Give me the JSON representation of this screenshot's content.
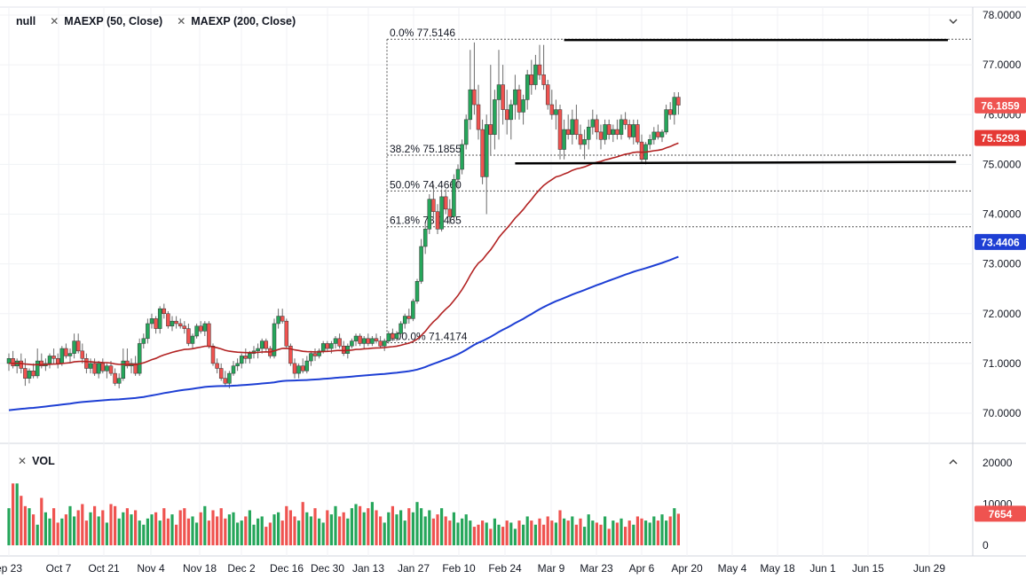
{
  "legend": {
    "symbol": "null",
    "ma50": "MAEXP (50, Close)",
    "ma200": "MAEXP (200, Close)",
    "vol": "VOL"
  },
  "icons": {
    "remove": "close-icon",
    "collapse_main": "chevron-down-icon",
    "collapse_vol": "chevron-up-icon"
  },
  "colors": {
    "up": "#26a65b",
    "down": "#ef5350",
    "ma50": "#b22222",
    "ma200": "#1e3fd4",
    "price_label": "#ef5350",
    "ma50_label": "#e53935",
    "ma200_label": "#1e3fd4",
    "vol_label": "#ef5350"
  },
  "chart_data": {
    "type": "candlestick",
    "price_axis": {
      "ticks": [
        "78.0000",
        "77.0000",
        "76.0000",
        "75.0000",
        "74.0000",
        "73.0000",
        "72.0000",
        "71.0000",
        "70.0000"
      ],
      "range": [
        69.75,
        78.05
      ]
    },
    "volume_axis": {
      "ticks": [
        "20000",
        "10000",
        "0"
      ],
      "range": [
        0,
        21500
      ]
    },
    "x_axis": {
      "ticks": [
        "ep 23",
        "Oct 7",
        "Oct 21",
        "Nov 4",
        "Nov 18",
        "Dec 2",
        "Dec 16",
        "Dec 30",
        "Jan 13",
        "Jan 27",
        "Feb 10",
        "Feb 24",
        "Mar 9",
        "Mar 23",
        "Apr 6",
        "Apr 20",
        "May 4",
        "May 18",
        "Jun 1",
        "Jun 15",
        "Jun 29"
      ]
    },
    "last_price_label": "76.1859",
    "ma50_label": "75.5293",
    "ma200_label": "73.4406",
    "volume_label": "7654",
    "fibonacci": {
      "from_date_index": 93,
      "levels": [
        {
          "label": "0.0% 77.5146",
          "value": 77.5146
        },
        {
          "label": "38.2% 75.1855",
          "value": 75.1855
        },
        {
          "label": "50.0% 74.4660",
          "value": 74.466
        },
        {
          "label": "61.8% 73.7465",
          "value": 73.7465
        },
        {
          "label": "100.0% 71.4174",
          "value": 71.4174
        }
      ]
    },
    "trendlines": [
      {
        "name": "resistance",
        "from": [
          136,
          77.5
        ],
        "to": [
          230,
          77.5
        ]
      },
      {
        "name": "support",
        "from": [
          124,
          75.02
        ],
        "to": [
          232,
          75.05
        ]
      }
    ],
    "candles": [
      [
        71.0,
        71.2,
        70.85,
        71.1,
        9000,
        1
      ],
      [
        71.1,
        71.25,
        70.9,
        70.95,
        15000,
        0
      ],
      [
        70.95,
        71.1,
        70.8,
        71.05,
        15000,
        1
      ],
      [
        71.05,
        71.2,
        70.8,
        70.9,
        12000,
        0
      ],
      [
        70.9,
        71.1,
        70.55,
        70.7,
        9500,
        0
      ],
      [
        70.7,
        70.9,
        70.6,
        70.85,
        9000,
        1
      ],
      [
        70.85,
        71.0,
        70.7,
        70.75,
        7500,
        0
      ],
      [
        70.75,
        71.3,
        70.7,
        71.05,
        5000,
        1
      ],
      [
        71.05,
        71.2,
        70.9,
        70.95,
        11500,
        0
      ],
      [
        70.95,
        71.1,
        70.85,
        71.0,
        8000,
        1
      ],
      [
        71.0,
        71.2,
        70.9,
        71.15,
        6500,
        1
      ],
      [
        71.15,
        71.3,
        71.0,
        71.1,
        9000,
        0
      ],
      [
        71.1,
        71.2,
        70.9,
        71.0,
        5500,
        0
      ],
      [
        71.0,
        71.35,
        70.95,
        71.3,
        6500,
        1
      ],
      [
        71.3,
        71.4,
        71.1,
        71.15,
        7500,
        0
      ],
      [
        71.15,
        71.3,
        71.0,
        71.2,
        9500,
        1
      ],
      [
        71.2,
        71.6,
        71.1,
        71.45,
        7000,
        1
      ],
      [
        71.45,
        71.6,
        71.2,
        71.25,
        8500,
        0
      ],
      [
        71.25,
        71.4,
        71.0,
        71.1,
        10000,
        0
      ],
      [
        71.1,
        71.2,
        70.8,
        70.9,
        6000,
        0
      ],
      [
        70.9,
        71.1,
        70.8,
        71.0,
        8000,
        1
      ],
      [
        71.0,
        71.1,
        70.75,
        70.8,
        9500,
        0
      ],
      [
        70.8,
        71.05,
        70.7,
        71.0,
        7000,
        1
      ],
      [
        71.0,
        71.1,
        70.8,
        70.85,
        8500,
        0
      ],
      [
        70.85,
        71.0,
        70.7,
        70.95,
        5500,
        1
      ],
      [
        70.95,
        71.05,
        70.75,
        70.8,
        10000,
        0
      ],
      [
        70.8,
        70.9,
        70.55,
        70.6,
        9500,
        0
      ],
      [
        70.6,
        70.8,
        70.5,
        70.7,
        6500,
        1
      ],
      [
        70.7,
        71.3,
        70.65,
        71.05,
        8000,
        1
      ],
      [
        71.05,
        71.3,
        70.9,
        70.95,
        9000,
        0
      ],
      [
        70.95,
        71.1,
        70.8,
        71.0,
        7500,
        1
      ],
      [
        71.0,
        71.15,
        70.75,
        70.8,
        8500,
        0
      ],
      [
        70.8,
        71.5,
        70.75,
        71.4,
        6000,
        1
      ],
      [
        71.4,
        71.6,
        71.3,
        71.5,
        5000,
        1
      ],
      [
        71.5,
        71.9,
        71.4,
        71.8,
        6500,
        1
      ],
      [
        71.8,
        72.0,
        71.7,
        71.9,
        7500,
        1
      ],
      [
        71.9,
        71.95,
        71.6,
        71.7,
        8000,
        0
      ],
      [
        71.7,
        72.15,
        71.6,
        72.1,
        6000,
        1
      ],
      [
        72.1,
        72.2,
        71.9,
        72.0,
        9000,
        0
      ],
      [
        72.0,
        72.05,
        71.7,
        71.75,
        6500,
        0
      ],
      [
        71.75,
        71.95,
        71.65,
        71.85,
        7500,
        1
      ],
      [
        71.85,
        71.95,
        71.7,
        71.8,
        5000,
        0
      ],
      [
        71.8,
        71.9,
        71.7,
        71.75,
        8500,
        0
      ],
      [
        71.75,
        71.85,
        71.6,
        71.7,
        9000,
        0
      ],
      [
        71.7,
        71.8,
        71.35,
        71.4,
        6500,
        0
      ],
      [
        71.4,
        71.6,
        71.3,
        71.55,
        7000,
        1
      ],
      [
        71.55,
        71.8,
        71.5,
        71.75,
        5500,
        1
      ],
      [
        71.75,
        71.85,
        71.6,
        71.65,
        8000,
        0
      ],
      [
        71.65,
        71.85,
        71.55,
        71.8,
        9500,
        1
      ],
      [
        71.8,
        71.85,
        71.3,
        71.35,
        6000,
        0
      ],
      [
        71.35,
        71.4,
        70.95,
        71.0,
        8500,
        0
      ],
      [
        71.0,
        71.1,
        70.8,
        70.9,
        7000,
        0
      ],
      [
        70.9,
        71.0,
        70.65,
        70.7,
        9000,
        0
      ],
      [
        70.7,
        70.85,
        70.55,
        70.6,
        6500,
        0
      ],
      [
        70.6,
        70.85,
        70.5,
        70.8,
        7500,
        1
      ],
      [
        70.8,
        71.05,
        70.75,
        70.95,
        8000,
        1
      ],
      [
        70.95,
        71.1,
        70.85,
        71.0,
        5500,
        1
      ],
      [
        71.0,
        71.2,
        70.9,
        71.15,
        6000,
        1
      ],
      [
        71.15,
        71.3,
        71.0,
        71.1,
        7000,
        0
      ],
      [
        71.1,
        71.25,
        71.0,
        71.2,
        8500,
        1
      ],
      [
        71.2,
        71.35,
        71.1,
        71.25,
        5000,
        1
      ],
      [
        71.25,
        71.4,
        71.1,
        71.3,
        6500,
        1
      ],
      [
        71.3,
        71.5,
        71.2,
        71.45,
        7000,
        1
      ],
      [
        71.45,
        71.5,
        71.25,
        71.3,
        4500,
        0
      ],
      [
        71.3,
        71.35,
        71.1,
        71.15,
        5500,
        0
      ],
      [
        71.15,
        71.9,
        71.1,
        71.8,
        7500,
        1
      ],
      [
        71.8,
        72.1,
        71.7,
        71.95,
        8000,
        1
      ],
      [
        71.95,
        72.1,
        71.8,
        71.85,
        6000,
        0
      ],
      [
        71.85,
        71.9,
        71.3,
        71.35,
        9500,
        0
      ],
      [
        71.35,
        71.4,
        70.95,
        71.0,
        8500,
        0
      ],
      [
        71.0,
        71.1,
        70.7,
        70.8,
        7000,
        0
      ],
      [
        70.8,
        71.0,
        70.7,
        70.95,
        6000,
        1
      ],
      [
        70.95,
        71.1,
        70.8,
        70.85,
        10500,
        0
      ],
      [
        70.85,
        71.15,
        70.8,
        71.05,
        8000,
        1
      ],
      [
        71.05,
        71.25,
        70.95,
        71.2,
        7000,
        1
      ],
      [
        71.2,
        71.3,
        71.05,
        71.15,
        9000,
        0
      ],
      [
        71.15,
        71.3,
        71.1,
        71.25,
        6500,
        1
      ],
      [
        71.25,
        71.45,
        71.2,
        71.4,
        5500,
        1
      ],
      [
        71.4,
        71.45,
        71.25,
        71.3,
        8500,
        0
      ],
      [
        71.3,
        71.45,
        71.2,
        71.4,
        7500,
        1
      ],
      [
        71.4,
        71.55,
        71.3,
        71.5,
        9500,
        1
      ],
      [
        71.5,
        71.6,
        71.3,
        71.35,
        7000,
        0
      ],
      [
        71.35,
        71.45,
        71.15,
        71.2,
        8000,
        0
      ],
      [
        71.2,
        71.4,
        71.1,
        71.35,
        6500,
        1
      ],
      [
        71.35,
        71.5,
        71.3,
        71.45,
        9000,
        1
      ],
      [
        71.45,
        71.6,
        71.35,
        71.55,
        10000,
        1
      ],
      [
        71.55,
        71.6,
        71.35,
        71.4,
        9500,
        0
      ],
      [
        71.4,
        71.55,
        71.3,
        71.5,
        8000,
        1
      ],
      [
        71.5,
        71.6,
        71.35,
        71.4,
        9000,
        0
      ],
      [
        71.4,
        71.55,
        71.35,
        71.5,
        10500,
        1
      ],
      [
        71.5,
        71.6,
        71.4,
        71.45,
        8500,
        0
      ],
      [
        71.45,
        71.55,
        71.3,
        71.35,
        7000,
        0
      ],
      [
        71.35,
        71.5,
        71.25,
        71.45,
        5500,
        1
      ],
      [
        71.45,
        71.65,
        71.4,
        71.6,
        8000,
        1
      ],
      [
        71.6,
        71.7,
        71.45,
        71.5,
        9500,
        0
      ],
      [
        71.5,
        71.65,
        71.45,
        71.6,
        7500,
        1
      ],
      [
        71.6,
        71.85,
        71.55,
        71.8,
        8500,
        1
      ],
      [
        71.8,
        72.0,
        71.7,
        71.95,
        6000,
        1
      ],
      [
        71.95,
        72.1,
        71.8,
        71.9,
        9000,
        0
      ],
      [
        71.9,
        72.3,
        71.85,
        72.25,
        8000,
        1
      ],
      [
        72.25,
        72.7,
        72.2,
        72.65,
        10500,
        1
      ],
      [
        72.65,
        73.5,
        72.6,
        73.35,
        9000,
        1
      ],
      [
        73.35,
        73.8,
        73.2,
        73.7,
        7000,
        1
      ],
      [
        73.7,
        74.4,
        73.6,
        74.3,
        8500,
        1
      ],
      [
        74.3,
        74.6,
        73.9,
        74.05,
        6500,
        0
      ],
      [
        74.05,
        74.2,
        73.6,
        73.7,
        7500,
        0
      ],
      [
        73.7,
        74.5,
        73.65,
        74.35,
        9000,
        1
      ],
      [
        74.35,
        74.5,
        74.0,
        74.1,
        7000,
        0
      ],
      [
        74.1,
        74.3,
        73.8,
        73.95,
        6000,
        0
      ],
      [
        73.95,
        74.8,
        73.9,
        74.7,
        8000,
        1
      ],
      [
        74.7,
        75.0,
        74.5,
        74.9,
        5500,
        1
      ],
      [
        74.9,
        75.5,
        74.8,
        75.4,
        6500,
        1
      ],
      [
        75.4,
        76.0,
        75.3,
        75.9,
        7500,
        1
      ],
      [
        75.9,
        77.3,
        75.7,
        76.5,
        6000,
        1
      ],
      [
        76.5,
        77.45,
        76.0,
        76.2,
        4500,
        0
      ],
      [
        76.2,
        76.6,
        75.5,
        75.7,
        5000,
        0
      ],
      [
        75.7,
        75.9,
        74.6,
        74.75,
        6000,
        0
      ],
      [
        74.75,
        76.0,
        74.0,
        75.8,
        5500,
        1
      ],
      [
        75.8,
        77.0,
        75.2,
        75.6,
        4000,
        0
      ],
      [
        75.6,
        76.5,
        75.3,
        76.3,
        6500,
        1
      ],
      [
        76.3,
        77.3,
        75.5,
        76.6,
        5000,
        1
      ],
      [
        76.6,
        77.0,
        75.8,
        76.1,
        4500,
        0
      ],
      [
        76.1,
        76.5,
        75.6,
        75.9,
        6000,
        0
      ],
      [
        75.9,
        76.3,
        75.5,
        76.2,
        5500,
        1
      ],
      [
        76.2,
        76.8,
        75.9,
        76.5,
        4000,
        1
      ],
      [
        76.5,
        76.6,
        75.9,
        76.05,
        6000,
        0
      ],
      [
        76.05,
        76.4,
        75.8,
        76.3,
        5000,
        1
      ],
      [
        76.3,
        76.9,
        76.1,
        76.8,
        7000,
        1
      ],
      [
        76.8,
        77.1,
        76.4,
        76.6,
        6000,
        0
      ],
      [
        76.6,
        77.2,
        76.5,
        77.0,
        5000,
        1
      ],
      [
        77.0,
        77.4,
        76.7,
        76.8,
        6500,
        0
      ],
      [
        76.8,
        77.4,
        76.5,
        76.6,
        5000,
        0
      ],
      [
        76.6,
        76.7,
        76.1,
        76.2,
        7000,
        0
      ],
      [
        76.2,
        76.5,
        75.9,
        76.0,
        6000,
        0
      ],
      [
        76.0,
        76.3,
        75.7,
        76.1,
        5500,
        1
      ],
      [
        76.1,
        76.2,
        75.1,
        75.3,
        8500,
        0
      ],
      [
        75.3,
        75.9,
        75.1,
        75.7,
        6500,
        1
      ],
      [
        75.7,
        76.0,
        75.5,
        75.6,
        6000,
        0
      ],
      [
        75.6,
        76.1,
        75.4,
        75.9,
        7000,
        1
      ],
      [
        75.9,
        76.2,
        75.5,
        75.6,
        5000,
        0
      ],
      [
        75.6,
        75.8,
        75.3,
        75.4,
        6500,
        0
      ],
      [
        75.4,
        75.7,
        75.1,
        75.5,
        4500,
        1
      ],
      [
        75.5,
        75.9,
        75.3,
        75.75,
        7500,
        1
      ],
      [
        75.75,
        76.1,
        75.6,
        75.9,
        6000,
        1
      ],
      [
        75.9,
        76.0,
        75.5,
        75.65,
        5500,
        0
      ],
      [
        75.65,
        75.8,
        75.3,
        75.5,
        5000,
        0
      ],
      [
        75.5,
        75.9,
        75.4,
        75.8,
        7000,
        1
      ],
      [
        75.8,
        75.9,
        75.5,
        75.6,
        4000,
        0
      ],
      [
        75.6,
        75.8,
        75.45,
        75.7,
        6000,
        1
      ],
      [
        75.7,
        75.9,
        75.5,
        75.6,
        5500,
        0
      ],
      [
        75.6,
        76.0,
        75.5,
        75.9,
        6500,
        1
      ],
      [
        75.9,
        76.05,
        75.7,
        75.8,
        4500,
        0
      ],
      [
        75.8,
        75.9,
        75.5,
        75.55,
        6000,
        0
      ],
      [
        75.55,
        75.9,
        75.4,
        75.8,
        5000,
        1
      ],
      [
        75.8,
        75.9,
        75.4,
        75.45,
        7000,
        0
      ],
      [
        75.45,
        75.6,
        75.05,
        75.1,
        6500,
        0
      ],
      [
        75.1,
        75.45,
        75.0,
        75.4,
        6000,
        1
      ],
      [
        75.4,
        75.6,
        75.3,
        75.5,
        5500,
        1
      ],
      [
        75.5,
        75.75,
        75.4,
        75.65,
        7000,
        1
      ],
      [
        75.65,
        75.8,
        75.5,
        75.55,
        6000,
        0
      ],
      [
        75.55,
        75.7,
        75.45,
        75.65,
        7500,
        1
      ],
      [
        75.65,
        76.2,
        75.6,
        76.1,
        6000,
        1
      ],
      [
        76.1,
        76.25,
        75.9,
        76.0,
        7000,
        0
      ],
      [
        76.0,
        76.45,
        75.8,
        76.35,
        9000,
        1
      ],
      [
        76.35,
        76.45,
        76.0,
        76.19,
        7654,
        0
      ]
    ]
  }
}
